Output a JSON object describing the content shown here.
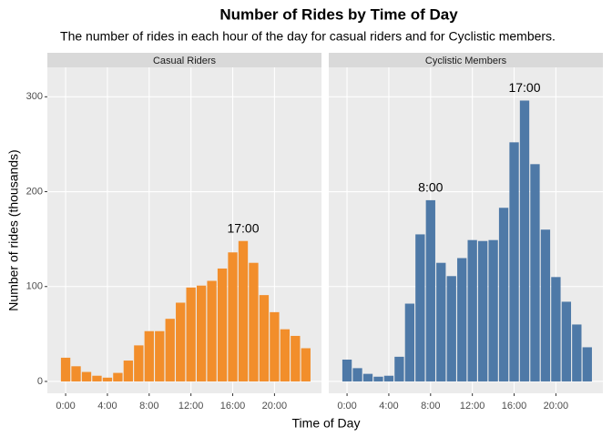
{
  "title": "Number of Rides by Time of Day",
  "subtitle": "The number of rides in each hour of the day for casual riders and for Cyclistic members.",
  "x_label": "Time of Day",
  "y_label": "Number of rides (thousands)",
  "chart_data": [
    {
      "type": "bar",
      "title": "Casual Riders",
      "color": "#F28E2B",
      "x": [
        0,
        1,
        2,
        3,
        4,
        5,
        6,
        7,
        8,
        9,
        10,
        11,
        12,
        13,
        14,
        15,
        16,
        17,
        18,
        19,
        20,
        21,
        22,
        23
      ],
      "values": [
        25,
        16,
        10,
        6,
        4,
        9,
        22,
        38,
        53,
        53,
        66,
        83,
        99,
        101,
        106,
        119,
        136,
        148,
        125,
        91,
        73,
        55,
        48,
        35
      ],
      "annotations": [
        {
          "label": "17:00",
          "x": 17
        }
      ],
      "xlim": [
        -1.75,
        24.5
      ],
      "xticks": [
        {
          "value": 0,
          "label": "0:00"
        },
        {
          "value": 4,
          "label": "4:00"
        },
        {
          "value": 8,
          "label": "8:00"
        },
        {
          "value": 12,
          "label": "12:00"
        },
        {
          "value": 16,
          "label": "16:00"
        },
        {
          "value": 20,
          "label": "20:00"
        }
      ],
      "ylim": [
        -12.5,
        331
      ],
      "yticks": [
        0,
        100,
        200,
        300
      ],
      "grid": true
    },
    {
      "type": "bar",
      "title": "Cyclistic Members",
      "color": "#4E79A7",
      "x": [
        0,
        1,
        2,
        3,
        4,
        5,
        6,
        7,
        8,
        9,
        10,
        11,
        12,
        13,
        14,
        15,
        16,
        17,
        18,
        19,
        20,
        21,
        22,
        23
      ],
      "values": [
        23,
        14,
        8,
        5,
        6,
        26,
        82,
        155,
        191,
        125,
        111,
        130,
        149,
        148,
        149,
        183,
        252,
        296,
        229,
        160,
        110,
        84,
        60,
        36
      ],
      "annotations": [
        {
          "label": "8:00",
          "x": 8
        },
        {
          "label": "17:00",
          "x": 17
        }
      ],
      "xlim": [
        -1.75,
        24.5
      ],
      "xticks": [
        {
          "value": 0,
          "label": "0:00"
        },
        {
          "value": 4,
          "label": "4:00"
        },
        {
          "value": 8,
          "label": "8:00"
        },
        {
          "value": 12,
          "label": "12:00"
        },
        {
          "value": 16,
          "label": "16:00"
        },
        {
          "value": 20,
          "label": "20:00"
        }
      ],
      "ylim": [
        -12.5,
        331
      ],
      "yticks": [
        0,
        100,
        200,
        300
      ],
      "grid": true
    }
  ]
}
